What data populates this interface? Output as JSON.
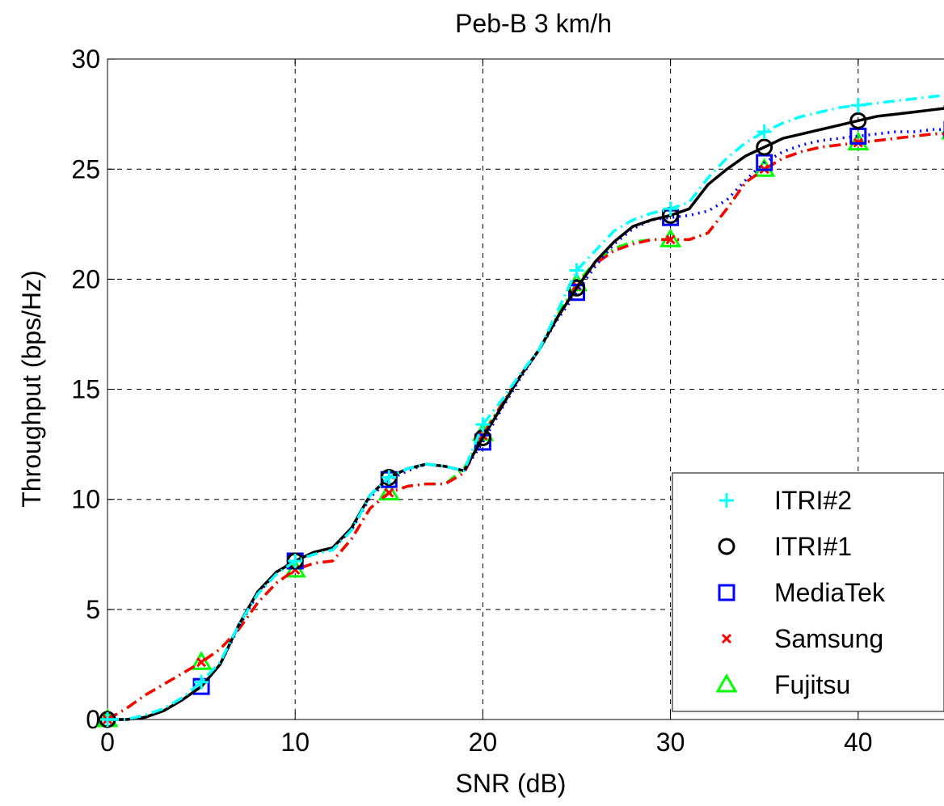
{
  "chart_data": {
    "type": "line",
    "title": "Peb-B 3 km/h",
    "xlabel": "SNR (dB)",
    "ylabel": "Throughput (bps/Hz)",
    "xlim": [
      0,
      45
    ],
    "ylim": [
      0,
      30
    ],
    "xticks": [
      0,
      10,
      20,
      30,
      40
    ],
    "yticks": [
      0,
      5,
      10,
      15,
      20,
      25,
      30
    ],
    "grid": true,
    "legend_position": "bottom-right",
    "series": [
      {
        "name": "ITRI#2",
        "color": "#00ffff",
        "line_style": "dash-dot",
        "marker": "plus",
        "markers_at": [
          0,
          5,
          10,
          15,
          20,
          25,
          30,
          35,
          40,
          45
        ],
        "x": [
          0,
          1,
          2,
          3,
          4,
          5,
          6,
          7,
          8,
          9,
          10,
          11,
          12,
          13,
          14,
          15,
          16,
          17,
          18,
          19,
          20,
          21,
          22,
          23,
          24,
          25,
          26,
          27,
          28,
          29,
          30,
          31,
          32,
          33,
          34,
          35,
          36,
          37,
          38,
          39,
          40,
          41,
          42,
          43,
          44,
          45
        ],
        "y": [
          0.0,
          0.0,
          0.2,
          0.5,
          1.0,
          1.7,
          2.6,
          4.3,
          5.7,
          6.6,
          7.2,
          7.5,
          7.7,
          8.6,
          10.2,
          11.0,
          11.4,
          11.6,
          11.5,
          11.3,
          13.4,
          14.5,
          15.7,
          16.8,
          18.6,
          20.4,
          21.3,
          22.2,
          22.7,
          23.0,
          23.2,
          23.5,
          24.6,
          25.5,
          26.2,
          26.7,
          27.1,
          27.4,
          27.6,
          27.8,
          27.9,
          28.0,
          28.1,
          28.2,
          28.3,
          28.4
        ]
      },
      {
        "name": "ITRI#1",
        "color": "#000000",
        "line_style": "solid",
        "marker": "circle",
        "markers_at": [
          0,
          10,
          15,
          20,
          25,
          30,
          35,
          40,
          45
        ],
        "x": [
          0,
          1,
          2,
          3,
          4,
          5,
          6,
          7,
          8,
          9,
          10,
          11,
          12,
          13,
          14,
          15,
          16,
          17,
          18,
          19,
          20,
          21,
          22,
          23,
          24,
          25,
          26,
          27,
          28,
          29,
          30,
          31,
          32,
          33,
          34,
          35,
          36,
          37,
          38,
          39,
          40,
          41,
          42,
          43,
          44,
          45
        ],
        "y": [
          0.0,
          0.0,
          0.1,
          0.4,
          0.9,
          1.5,
          2.5,
          4.3,
          5.8,
          6.7,
          7.2,
          7.6,
          7.8,
          8.7,
          10.2,
          11.0,
          11.4,
          11.6,
          11.5,
          11.3,
          12.8,
          14.2,
          15.6,
          16.8,
          18.3,
          19.6,
          20.8,
          21.7,
          22.4,
          22.7,
          22.9,
          23.2,
          24.3,
          25.0,
          25.6,
          26.0,
          26.4,
          26.6,
          26.8,
          27.0,
          27.2,
          27.4,
          27.5,
          27.6,
          27.7,
          27.8
        ]
      },
      {
        "name": "MediaTek",
        "color": "#0000ff",
        "line_style": "dotted",
        "marker": "square",
        "markers_at": [
          5,
          10,
          15,
          20,
          25,
          30,
          35,
          40,
          45
        ],
        "x": [
          0,
          1,
          2,
          3,
          4,
          5,
          6,
          7,
          8,
          9,
          10,
          11,
          12,
          13,
          14,
          15,
          16,
          17,
          18,
          19,
          20,
          21,
          22,
          23,
          24,
          25,
          26,
          27,
          28,
          29,
          30,
          31,
          32,
          33,
          34,
          35,
          36,
          37,
          38,
          39,
          40,
          41,
          42,
          43,
          44,
          45
        ],
        "y": [
          0.0,
          0.0,
          0.1,
          0.4,
          0.9,
          1.5,
          2.5,
          4.2,
          5.7,
          6.7,
          7.2,
          7.6,
          7.8,
          8.6,
          10.1,
          10.9,
          11.3,
          11.6,
          11.5,
          11.3,
          12.6,
          14.1,
          15.5,
          16.8,
          18.2,
          19.4,
          20.6,
          21.6,
          22.3,
          22.7,
          22.8,
          22.9,
          23.1,
          23.6,
          24.5,
          25.3,
          25.8,
          26.1,
          26.3,
          26.4,
          26.5,
          26.6,
          26.7,
          26.7,
          26.8,
          26.8
        ]
      },
      {
        "name": "Samsung",
        "color": "#ff0000",
        "line_style": "dash-dot",
        "marker": "x",
        "markers_at": [
          0,
          5,
          10,
          15,
          20,
          25,
          30,
          35,
          40,
          45
        ],
        "x": [
          0,
          1,
          2,
          3,
          4,
          5,
          6,
          7,
          8,
          9,
          10,
          11,
          12,
          13,
          14,
          15,
          16,
          17,
          18,
          19,
          20,
          21,
          22,
          23,
          24,
          25,
          26,
          27,
          28,
          29,
          30,
          31,
          32,
          33,
          34,
          35,
          36,
          37,
          38,
          39,
          40,
          41,
          42,
          43,
          44,
          45
        ],
        "y": [
          0.0,
          0.5,
          1.1,
          1.6,
          2.1,
          2.6,
          3.2,
          4.1,
          5.3,
          6.2,
          6.8,
          7.1,
          7.2,
          8.2,
          9.6,
          10.3,
          10.6,
          10.7,
          10.7,
          11.2,
          12.9,
          14.3,
          15.6,
          16.8,
          18.3,
          19.7,
          20.7,
          21.3,
          21.6,
          21.8,
          21.8,
          21.8,
          22.1,
          23.2,
          24.4,
          25.0,
          25.5,
          25.8,
          26.0,
          26.1,
          26.2,
          26.3,
          26.4,
          26.5,
          26.6,
          26.6
        ]
      },
      {
        "name": "Fujitsu",
        "color": "#00ff00",
        "line_style": "dash-dot",
        "marker": "triangle",
        "markers_at": [
          0,
          5,
          10,
          15,
          20,
          25,
          30,
          35,
          40,
          45
        ],
        "x": [
          0,
          1,
          2,
          3,
          4,
          5,
          6,
          7,
          8,
          9,
          10,
          11,
          12,
          13,
          14,
          15,
          16,
          17,
          18,
          19,
          20,
          21,
          22,
          23,
          24,
          25,
          26,
          27,
          28,
          29,
          30,
          31,
          32,
          33,
          34,
          35,
          36,
          37,
          38,
          39,
          40,
          41,
          42,
          43,
          44,
          45
        ],
        "y": [
          0.0,
          0.5,
          1.1,
          1.6,
          2.1,
          2.6,
          3.2,
          4.1,
          5.3,
          6.2,
          6.8,
          7.1,
          7.2,
          8.2,
          9.6,
          10.3,
          10.6,
          10.7,
          10.7,
          11.4,
          13.0,
          14.3,
          15.6,
          16.8,
          18.4,
          19.8,
          20.8,
          21.4,
          21.7,
          21.8,
          21.8,
          21.8,
          22.1,
          23.2,
          24.4,
          25.0,
          25.5,
          25.8,
          26.0,
          26.1,
          26.2,
          26.3,
          26.4,
          26.5,
          26.6,
          26.7
        ]
      }
    ]
  }
}
